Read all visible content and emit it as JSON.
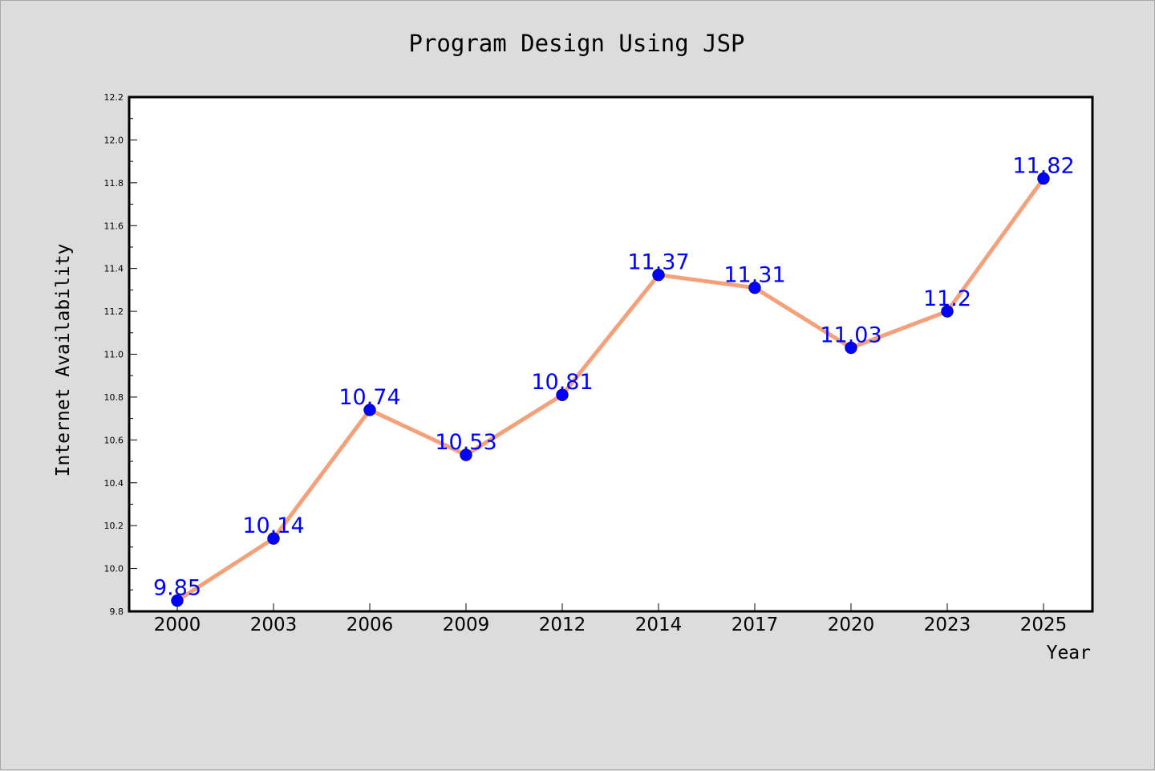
{
  "chart_data": {
    "type": "line",
    "title": "Program Design Using JSP",
    "xlabel": "Year",
    "ylabel": "Internet Availability",
    "categories": [
      "2000",
      "2003",
      "2006",
      "2009",
      "2012",
      "2014",
      "2017",
      "2020",
      "2023",
      "2025"
    ],
    "series": [
      {
        "values": [
          9.85,
          10.14,
          10.74,
          10.53,
          10.81,
          11.37,
          11.31,
          11.03,
          11.2,
          11.82
        ],
        "data_labels": [
          "9.85",
          "10.14",
          "10.74",
          "10.53",
          "10.81",
          "11.37",
          "11.31",
          "11.03",
          "11.2",
          "11.82"
        ],
        "line_color": "#f4a07a",
        "marker_color": "#0000ff",
        "label_color": "#0000ff"
      }
    ],
    "ylim": [
      9.8,
      12.2
    ],
    "y_ticks": [
      "9.8",
      "10.0",
      "10.2",
      "10.4",
      "10.6",
      "10.8",
      "11.0",
      "11.2",
      "11.4",
      "11.6",
      "11.8",
      "12.0",
      "12.2"
    ],
    "y_minor_step": 0.1,
    "grid": false,
    "legend": "none",
    "background_color": "#dcdcdc",
    "plot_background_color": "#ffffff"
  }
}
